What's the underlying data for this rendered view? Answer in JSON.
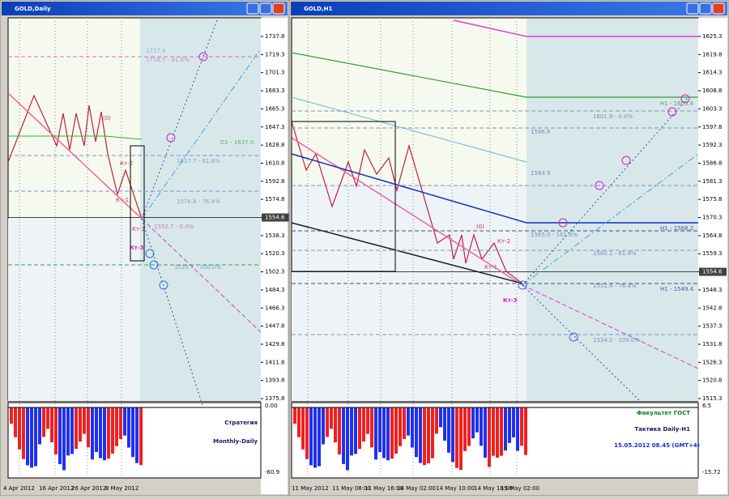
{
  "windows": [
    {
      "title": "GOLD,Daily",
      "price_axis": [
        "1737.8",
        "1719.3",
        "1701.3",
        "1683.3",
        "1665.3",
        "1647.3",
        "1628.8",
        "1610.8",
        "1592.8",
        "1574.8",
        "1554.6",
        "1538.3",
        "1520.3",
        "1502.3",
        "1484.3",
        "1466.3",
        "1447.8",
        "1429.8",
        "1411.8",
        "1393.8",
        "1375.8"
      ],
      "indicator_axis": [
        "0.00",
        "-60.9"
      ],
      "time_axis": [
        "4 Apr 2012",
        "16 Apr 2012",
        "26 Apr 2012",
        "8 May 2012"
      ],
      "annotations": [
        "1727.6",
        "1718.5 - 61.8%",
        "D1 - 1637.0",
        "1617.7 - 61.8%",
        "1576.8 - 76.4%",
        "1552.7 - 0.0%",
        "1520.7 - 100.0%",
        "(0)",
        "Кт-2",
        "Кт-1",
        "Кт-3",
        "Кт-3"
      ],
      "caption": [
        "Стратегия",
        "Monthly-Daily"
      ]
    },
    {
      "title": "GOLD,H1",
      "price_axis": [
        "1625.3",
        "1619.8",
        "1614.3",
        "1608.8",
        "1603.3",
        "1597.8",
        "1592.3",
        "1586.8",
        "1581.3",
        "1575.8",
        "1570.3",
        "1564.8",
        "1559.3",
        "1554.6",
        "1548.3",
        "1542.8",
        "1537.3",
        "1531.8",
        "1526.3",
        "1520.8",
        "1515.3"
      ],
      "indicator_axis": [
        "6.5",
        "-15.72"
      ],
      "time_axis": [
        "11 May 2012",
        "11 May 08:00",
        "11 May 16:00",
        "14 May 02:00",
        "14 May 10:00",
        "14 May 18:00",
        "15 May 02:00"
      ],
      "annotations": [
        "1596.6",
        "1601.9 - 0.0%",
        "H1 - 1605.8",
        "1584.9",
        "H1 - 1568.2",
        "1565.0 - 161.8%",
        "1560.1 - 61.8%",
        "1552.4 - 76.4%",
        "H1 - 1549.4",
        "1534.2 - 100.0%",
        "(0)",
        "Кт-2",
        "Кт-1",
        "Кт-3"
      ],
      "caption": [
        "Факультет ГОСТ",
        "Тактика Daily-H1",
        "15.05.2012 08.45 (GMT+4)"
      ]
    }
  ]
}
